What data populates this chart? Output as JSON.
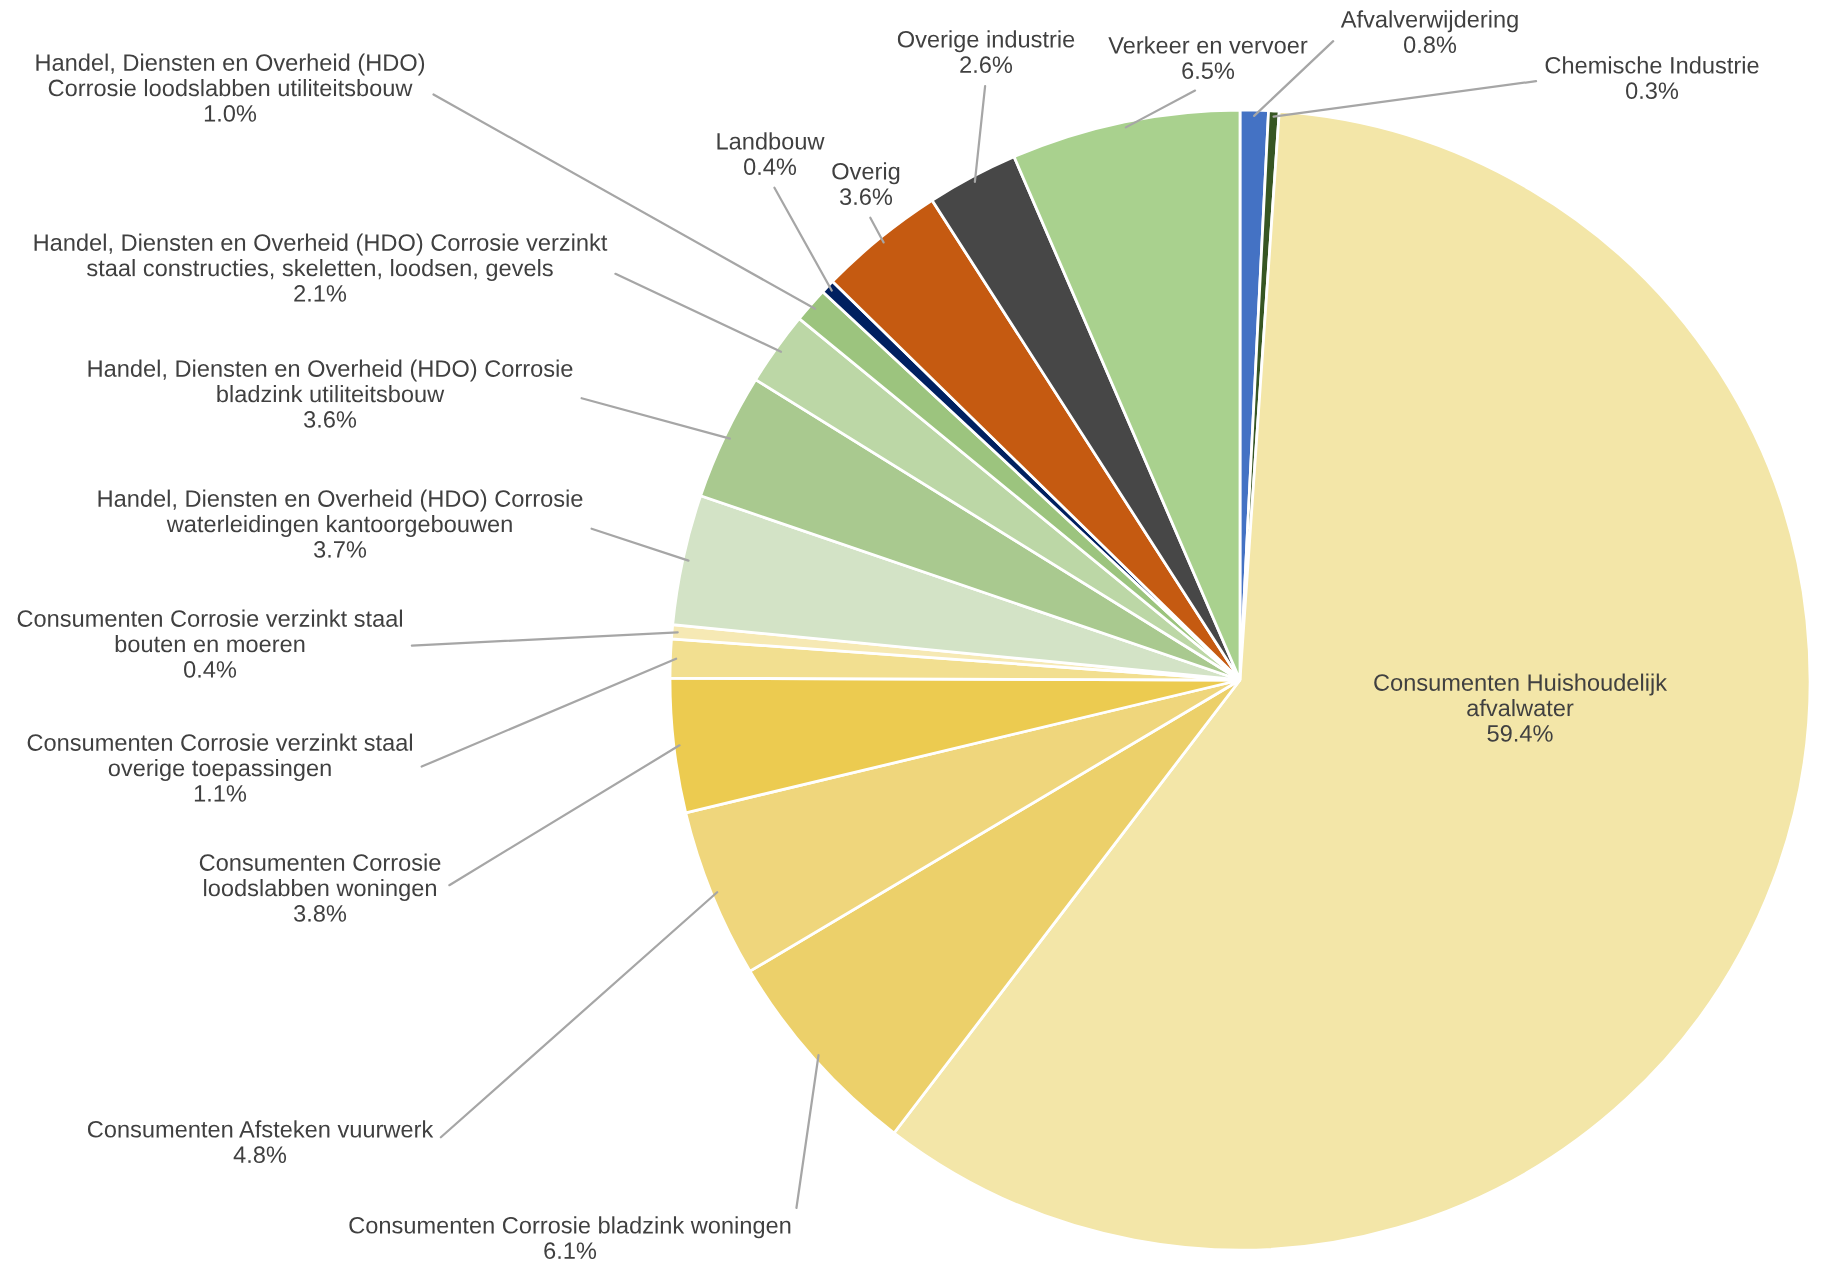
{
  "chart_data": {
    "type": "pie",
    "categories": [
      "Afvalverwijdering",
      "Chemische Industrie",
      "Consumenten Huishoudelijk\nafvalwater",
      "Consumenten Corrosie bladzink woningen",
      "Consumenten Afsteken vuurwerk",
      "Consumenten Corrosie\nloodslabben woningen",
      "Consumenten Corrosie verzinkt staal\noverige toepassingen",
      "Consumenten Corrosie verzinkt staal\nbouten en moeren",
      "Handel, Diensten en Overheid (HDO) Corrosie\nwaterleidingen kantoorgebouwen",
      "Handel, Diensten en Overheid (HDO) Corrosie\nbladzink utiliteitsbouw",
      "Handel, Diensten en Overheid (HDO) Corrosie verzinkt\nstaal constructies, skeletten, loodsen, gevels",
      "Handel, Diensten en Overheid (HDO)\nCorrosie loodslabben utiliteitsbouw",
      "Landbouw",
      "Overig",
      "Overige industrie",
      "Verkeer en vervoer"
    ],
    "values": [
      0.8,
      0.3,
      59.4,
      6.1,
      4.8,
      3.8,
      1.1,
      0.4,
      3.7,
      3.6,
      2.1,
      1.0,
      0.4,
      3.6,
      2.6,
      6.5
    ],
    "value_labels": [
      "0.8%",
      "0.3%",
      "59.4%",
      "6.1%",
      "4.8%",
      "3.8%",
      "1.1%",
      "0.4%",
      "3.7%",
      "3.6%",
      "2.1%",
      "1.0%",
      "0.4%",
      "3.6%",
      "2.6%",
      "6.5%"
    ],
    "colors": [
      "#4472c4",
      "#375623",
      "#f3e6a8",
      "#ecd06a",
      "#efd67c",
      "#eccb50",
      "#f2df90",
      "#f6e9b4",
      "#d3e3c6",
      "#a9c98f",
      "#bcd7a6",
      "#9cc47e",
      "#002060",
      "#c55a11",
      "#474747",
      "#a9d18e"
    ]
  }
}
